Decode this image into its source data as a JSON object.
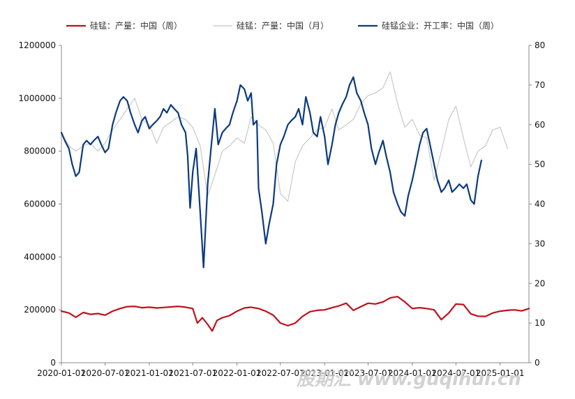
{
  "chart_data": {
    "type": "line",
    "legend_position": "top",
    "grid": false,
    "x_ticks": [
      "2020-01-01",
      "2020-07-01",
      "2021-01-01",
      "2021-07-01",
      "2022-01-01",
      "2022-07-01",
      "2023-01-01",
      "2023-07-01",
      "2024-01-01",
      "2024-07-01",
      "2025-01-01"
    ],
    "x_range": [
      "2020-01-01",
      "2025-05-01"
    ],
    "y_left": {
      "range": [
        0,
        1200000
      ],
      "ticks": [
        "0",
        "200000",
        "400000",
        "600000",
        "800000",
        "1000000",
        "1200000"
      ]
    },
    "y_right": {
      "range": [
        0,
        80
      ],
      "ticks": [
        "0",
        "10",
        "20",
        "30",
        "40",
        "50",
        "60",
        "70",
        "80"
      ]
    },
    "series": [
      {
        "name": "硅锰：产量：中国（周）",
        "axis": "left",
        "color": "#c0101b",
        "points": [
          [
            "2020-01-01",
            195000
          ],
          [
            "2020-02-01",
            188000
          ],
          [
            "2020-03-01",
            172000
          ],
          [
            "2020-04-01",
            190000
          ],
          [
            "2020-05-01",
            183000
          ],
          [
            "2020-06-01",
            186000
          ],
          [
            "2020-07-01",
            180000
          ],
          [
            "2020-08-01",
            195000
          ],
          [
            "2020-09-01",
            205000
          ],
          [
            "2020-10-01",
            212000
          ],
          [
            "2020-11-01",
            213000
          ],
          [
            "2020-12-01",
            208000
          ],
          [
            "2021-01-01",
            210000
          ],
          [
            "2021-02-01",
            207000
          ],
          [
            "2021-03-01",
            209000
          ],
          [
            "2021-04-01",
            211000
          ],
          [
            "2021-05-01",
            213000
          ],
          [
            "2021-06-01",
            210000
          ],
          [
            "2021-07-01",
            205000
          ],
          [
            "2021-07-20",
            150000
          ],
          [
            "2021-08-10",
            170000
          ],
          [
            "2021-09-01",
            145000
          ],
          [
            "2021-09-20",
            120000
          ],
          [
            "2021-10-10",
            160000
          ],
          [
            "2021-11-01",
            170000
          ],
          [
            "2021-12-01",
            178000
          ],
          [
            "2022-01-01",
            195000
          ],
          [
            "2022-02-01",
            207000
          ],
          [
            "2022-03-01",
            210000
          ],
          [
            "2022-04-01",
            205000
          ],
          [
            "2022-05-01",
            195000
          ],
          [
            "2022-06-01",
            180000
          ],
          [
            "2022-07-01",
            150000
          ],
          [
            "2022-08-01",
            140000
          ],
          [
            "2022-09-01",
            150000
          ],
          [
            "2022-10-01",
            175000
          ],
          [
            "2022-11-01",
            193000
          ],
          [
            "2022-12-01",
            198000
          ],
          [
            "2023-01-01",
            200000
          ],
          [
            "2023-02-01",
            208000
          ],
          [
            "2023-03-01",
            215000
          ],
          [
            "2023-04-01",
            225000
          ],
          [
            "2023-05-01",
            198000
          ],
          [
            "2023-06-01",
            212000
          ],
          [
            "2023-07-01",
            225000
          ],
          [
            "2023-08-01",
            222000
          ],
          [
            "2023-09-01",
            230000
          ],
          [
            "2023-10-01",
            245000
          ],
          [
            "2023-11-01",
            250000
          ],
          [
            "2023-12-01",
            230000
          ],
          [
            "2024-01-01",
            205000
          ],
          [
            "2024-02-01",
            208000
          ],
          [
            "2024-03-01",
            205000
          ],
          [
            "2024-04-01",
            200000
          ],
          [
            "2024-05-01",
            163000
          ],
          [
            "2024-06-01",
            188000
          ],
          [
            "2024-07-01",
            222000
          ],
          [
            "2024-08-01",
            220000
          ],
          [
            "2024-09-01",
            185000
          ],
          [
            "2024-10-01",
            176000
          ],
          [
            "2024-11-01",
            175000
          ],
          [
            "2024-12-01",
            188000
          ],
          [
            "2025-01-01",
            195000
          ],
          [
            "2025-02-01",
            198000
          ],
          [
            "2025-03-01",
            200000
          ],
          [
            "2025-04-01",
            196000
          ],
          [
            "2025-05-01",
            205000
          ]
        ]
      },
      {
        "name": "硅锰：产量：中国（月）",
        "axis": "left",
        "color": "#c8c8c8",
        "points": [
          [
            "2020-01-01",
            870000
          ],
          [
            "2020-02-01",
            820000
          ],
          [
            "2020-03-01",
            800000
          ],
          [
            "2020-04-01",
            820000
          ],
          [
            "2020-05-01",
            830000
          ],
          [
            "2020-06-01",
            800000
          ],
          [
            "2020-07-01",
            830000
          ],
          [
            "2020-08-01",
            880000
          ],
          [
            "2020-09-01",
            920000
          ],
          [
            "2020-10-01",
            960000
          ],
          [
            "2020-11-01",
            1000000
          ],
          [
            "2020-12-01",
            920000
          ],
          [
            "2021-01-01",
            900000
          ],
          [
            "2021-02-01",
            830000
          ],
          [
            "2021-03-01",
            890000
          ],
          [
            "2021-04-01",
            910000
          ],
          [
            "2021-05-01",
            930000
          ],
          [
            "2021-06-01",
            920000
          ],
          [
            "2021-07-01",
            890000
          ],
          [
            "2021-08-01",
            820000
          ],
          [
            "2021-09-01",
            630000
          ],
          [
            "2021-10-01",
            710000
          ],
          [
            "2021-11-01",
            800000
          ],
          [
            "2021-12-01",
            820000
          ],
          [
            "2022-01-01",
            850000
          ],
          [
            "2022-02-01",
            830000
          ],
          [
            "2022-03-01",
            930000
          ],
          [
            "2022-04-01",
            900000
          ],
          [
            "2022-05-01",
            880000
          ],
          [
            "2022-06-01",
            830000
          ],
          [
            "2022-07-01",
            640000
          ],
          [
            "2022-08-01",
            610000
          ],
          [
            "2022-09-01",
            760000
          ],
          [
            "2022-10-01",
            820000
          ],
          [
            "2022-11-01",
            850000
          ],
          [
            "2022-12-01",
            880000
          ],
          [
            "2023-01-01",
            890000
          ],
          [
            "2023-02-01",
            960000
          ],
          [
            "2023-03-01",
            880000
          ],
          [
            "2023-04-01",
            900000
          ],
          [
            "2023-05-01",
            920000
          ],
          [
            "2023-06-01",
            980000
          ],
          [
            "2023-07-01",
            1010000
          ],
          [
            "2023-08-01",
            1020000
          ],
          [
            "2023-09-01",
            1040000
          ],
          [
            "2023-10-01",
            1100000
          ],
          [
            "2023-11-01",
            980000
          ],
          [
            "2023-12-01",
            890000
          ],
          [
            "2024-01-01",
            920000
          ],
          [
            "2024-02-01",
            860000
          ],
          [
            "2024-03-01",
            850000
          ],
          [
            "2024-04-01",
            690000
          ],
          [
            "2024-05-01",
            800000
          ],
          [
            "2024-06-01",
            920000
          ],
          [
            "2024-07-01",
            970000
          ],
          [
            "2024-08-01",
            850000
          ],
          [
            "2024-09-01",
            740000
          ],
          [
            "2024-10-01",
            800000
          ],
          [
            "2024-11-01",
            820000
          ],
          [
            "2024-12-01",
            880000
          ],
          [
            "2025-01-01",
            890000
          ],
          [
            "2025-02-01",
            810000
          ]
        ]
      },
      {
        "name": "硅锰企业：开工率：中国（周）",
        "axis": "right",
        "color": "#0b3a7e",
        "points": [
          [
            "2020-01-01",
            58
          ],
          [
            "2020-01-15",
            56
          ],
          [
            "2020-02-01",
            54
          ],
          [
            "2020-02-15",
            50
          ],
          [
            "2020-03-01",
            47
          ],
          [
            "2020-03-15",
            48
          ],
          [
            "2020-04-01",
            55
          ],
          [
            "2020-04-15",
            56
          ],
          [
            "2020-05-01",
            55
          ],
          [
            "2020-05-15",
            56
          ],
          [
            "2020-06-01",
            57
          ],
          [
            "2020-06-15",
            55
          ],
          [
            "2020-07-01",
            53
          ],
          [
            "2020-07-15",
            54
          ],
          [
            "2020-08-01",
            60
          ],
          [
            "2020-08-15",
            63
          ],
          [
            "2020-09-01",
            66
          ],
          [
            "2020-09-15",
            67
          ],
          [
            "2020-10-01",
            66
          ],
          [
            "2020-10-15",
            63
          ],
          [
            "2020-11-01",
            60
          ],
          [
            "2020-11-15",
            58
          ],
          [
            "2020-12-01",
            61
          ],
          [
            "2020-12-15",
            62
          ],
          [
            "2021-01-01",
            59
          ],
          [
            "2021-01-15",
            60
          ],
          [
            "2021-02-01",
            61
          ],
          [
            "2021-02-15",
            62
          ],
          [
            "2021-03-01",
            64
          ],
          [
            "2021-03-15",
            63
          ],
          [
            "2021-04-01",
            65
          ],
          [
            "2021-04-15",
            64
          ],
          [
            "2021-05-01",
            63
          ],
          [
            "2021-05-15",
            60
          ],
          [
            "2021-06-01",
            58
          ],
          [
            "2021-06-10",
            52
          ],
          [
            "2021-06-20",
            39
          ],
          [
            "2021-07-01",
            48
          ],
          [
            "2021-07-15",
            54
          ],
          [
            "2021-08-01",
            38
          ],
          [
            "2021-08-15",
            24
          ],
          [
            "2021-09-01",
            45
          ],
          [
            "2021-09-15",
            54
          ],
          [
            "2021-10-01",
            64
          ],
          [
            "2021-10-15",
            55
          ],
          [
            "2021-11-01",
            58
          ],
          [
            "2021-11-15",
            59
          ],
          [
            "2021-12-01",
            60
          ],
          [
            "2021-12-15",
            63
          ],
          [
            "2022-01-01",
            66
          ],
          [
            "2022-01-15",
            70
          ],
          [
            "2022-02-01",
            69
          ],
          [
            "2022-02-15",
            66
          ],
          [
            "2022-03-01",
            68
          ],
          [
            "2022-03-10",
            60
          ],
          [
            "2022-03-25",
            61
          ],
          [
            "2022-04-01",
            44
          ],
          [
            "2022-04-15",
            38
          ],
          [
            "2022-05-01",
            30
          ],
          [
            "2022-05-15",
            35
          ],
          [
            "2022-06-01",
            40
          ],
          [
            "2022-06-15",
            50
          ],
          [
            "2022-07-01",
            55
          ],
          [
            "2022-07-15",
            57
          ],
          [
            "2022-08-01",
            60
          ],
          [
            "2022-08-15",
            61
          ],
          [
            "2022-09-01",
            62
          ],
          [
            "2022-09-15",
            64
          ],
          [
            "2022-10-01",
            60
          ],
          [
            "2022-10-15",
            67
          ],
          [
            "2022-11-01",
            63
          ],
          [
            "2022-11-15",
            58
          ],
          [
            "2022-12-01",
            57
          ],
          [
            "2022-12-15",
            62
          ],
          [
            "2023-01-01",
            57
          ],
          [
            "2023-01-15",
            50
          ],
          [
            "2023-02-01",
            55
          ],
          [
            "2023-02-15",
            60
          ],
          [
            "2023-03-01",
            63
          ],
          [
            "2023-03-15",
            65
          ],
          [
            "2023-04-01",
            67
          ],
          [
            "2023-04-15",
            70
          ],
          [
            "2023-05-01",
            72
          ],
          [
            "2023-05-15",
            68
          ],
          [
            "2023-06-01",
            66
          ],
          [
            "2023-06-15",
            63
          ],
          [
            "2023-07-01",
            60
          ],
          [
            "2023-07-15",
            54
          ],
          [
            "2023-08-01",
            50
          ],
          [
            "2023-08-15",
            53
          ],
          [
            "2023-09-01",
            56
          ],
          [
            "2023-09-15",
            52
          ],
          [
            "2023-10-01",
            48
          ],
          [
            "2023-10-15",
            43
          ],
          [
            "2023-11-01",
            40
          ],
          [
            "2023-11-15",
            38
          ],
          [
            "2023-12-01",
            37
          ],
          [
            "2023-12-15",
            42
          ],
          [
            "2024-01-01",
            46
          ],
          [
            "2024-01-15",
            50
          ],
          [
            "2024-02-01",
            55
          ],
          [
            "2024-02-15",
            58
          ],
          [
            "2024-03-01",
            59
          ],
          [
            "2024-03-15",
            55
          ],
          [
            "2024-04-01",
            50
          ],
          [
            "2024-04-15",
            46
          ],
          [
            "2024-05-01",
            43
          ],
          [
            "2024-05-15",
            44
          ],
          [
            "2024-06-01",
            46
          ],
          [
            "2024-06-15",
            43
          ],
          [
            "2024-07-01",
            44
          ],
          [
            "2024-07-15",
            45
          ],
          [
            "2024-08-01",
            44
          ],
          [
            "2024-08-15",
            45
          ],
          [
            "2024-09-01",
            41
          ],
          [
            "2024-09-15",
            40
          ],
          [
            "2024-10-01",
            47
          ],
          [
            "2024-10-15",
            51
          ]
        ]
      }
    ]
  },
  "watermark": "股期汇 www.guqihui.cn"
}
